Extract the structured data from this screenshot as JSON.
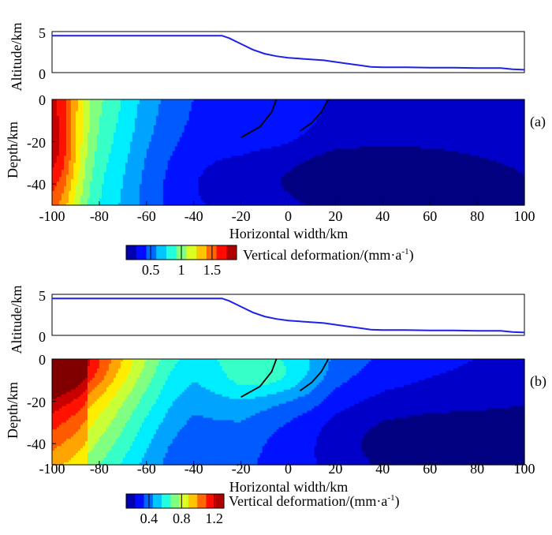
{
  "chart_data": {
    "type": "heatmap",
    "x_axis": {
      "label": "Horizontal width/km",
      "range": [
        -100,
        100
      ],
      "ticks": [
        -100,
        -80,
        -60,
        -40,
        -20,
        0,
        20,
        40,
        60,
        80,
        100
      ]
    },
    "depth_axis": {
      "label": "Depth/km",
      "range": [
        0,
        -50
      ],
      "ticks": [
        0,
        -20,
        -40
      ]
    },
    "altitude_axis": {
      "label": "Altitude/km",
      "range": [
        0,
        5
      ],
      "ticks": [
        5,
        0
      ]
    },
    "topography": {
      "x": [
        -100,
        -28,
        -25,
        -20,
        -15,
        -10,
        -5,
        0,
        5,
        10,
        15,
        20,
        25,
        30,
        35,
        40,
        50,
        60,
        70,
        80,
        90,
        95,
        100
      ],
      "altitude_km": [
        4.5,
        4.5,
        4.2,
        3.5,
        2.8,
        2.3,
        2.0,
        1.8,
        1.7,
        1.6,
        1.5,
        1.3,
        1.1,
        0.9,
        0.7,
        0.65,
        0.65,
        0.6,
        0.6,
        0.55,
        0.55,
        0.4,
        0.35
      ]
    },
    "faults": [
      {
        "x": [
          -20,
          -12,
          -7,
          -5
        ],
        "depth": [
          -18,
          -13,
          -6,
          0
        ]
      },
      {
        "x": [
          5,
          10,
          14,
          17
        ],
        "depth": [
          -15,
          -11,
          -6,
          0
        ]
      }
    ],
    "panels": [
      {
        "label": "(a)",
        "colorbar_title": "Vertical deformation/(mm·a",
        "colorbar_sup": "-1",
        "colorbar_close": ")",
        "colorbar_ticks": [
          "0.5",
          "1",
          "1.5"
        ],
        "colorbar_tick_values": [
          0.5,
          1.0,
          1.5
        ],
        "colorbar_range": [
          0.1,
          1.9
        ],
        "surface_profile": {
          "x": [
            -100,
            -95,
            -90,
            -85,
            -80,
            -70,
            -60,
            -50,
            -40,
            -30,
            -20,
            -10,
            0,
            10,
            20,
            40,
            60,
            80,
            100
          ],
          "values": [
            1.45,
            1.35,
            1.2,
            1.05,
            0.95,
            0.8,
            0.62,
            0.5,
            0.42,
            0.4,
            0.4,
            0.38,
            0.36,
            0.32,
            0.28,
            0.26,
            0.24,
            0.23,
            0.22
          ]
        }
      },
      {
        "label": "(b)",
        "colorbar_title": "Vertical deformation/(mm·a",
        "colorbar_sup": "-1",
        "colorbar_close": ")",
        "colorbar_ticks": [
          "0.4",
          "0.8",
          "1.2"
        ],
        "colorbar_tick_values": [
          0.4,
          0.8,
          1.2
        ],
        "colorbar_range": [
          0.12,
          1.32
        ],
        "surface_profile": {
          "x": [
            -100,
            -90,
            -80,
            -70,
            -60,
            -50,
            -40,
            -30,
            -20,
            -10,
            0,
            10,
            20,
            40,
            60,
            80,
            100
          ],
          "values": [
            1.3,
            1.2,
            1.05,
            0.9,
            0.75,
            0.62,
            0.55,
            0.58,
            0.6,
            0.56,
            0.52,
            0.48,
            0.4,
            0.32,
            0.28,
            0.25,
            0.22
          ]
        }
      }
    ]
  }
}
